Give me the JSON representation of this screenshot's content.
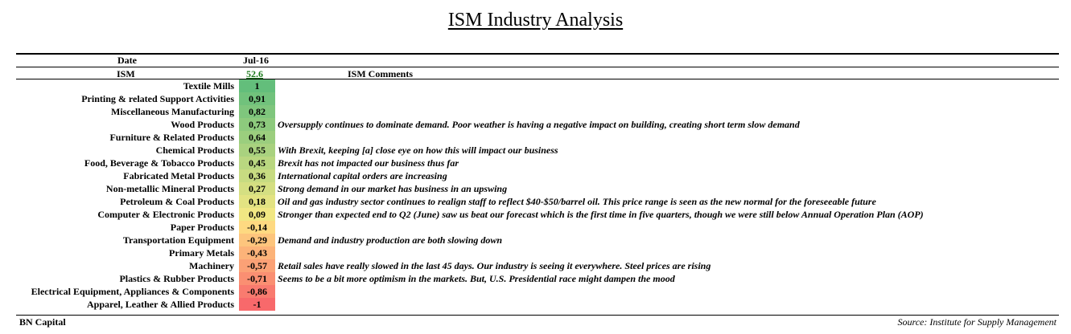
{
  "title": "ISM Industry Analysis",
  "header": {
    "date_label": "Date",
    "date_value": "Jul-16",
    "ism_label": "ISM",
    "ism_value": "52.6",
    "comments_label": "ISM Comments"
  },
  "footer": {
    "left": "BN Capital",
    "right": "Source: Institute for Supply Management"
  },
  "colors": {
    "high": "#63be7b",
    "mid": "#ffeb84",
    "low": "#f8696b",
    "ism_value_text": "#1a7a1a"
  },
  "chart_data": {
    "type": "table",
    "title": "ISM Industry Analysis",
    "columns": [
      "",
      "Jul-16",
      "ISM Comments"
    ],
    "rows": [
      {
        "industry": "Textile Mills",
        "value": 1,
        "display": "1",
        "comment": ""
      },
      {
        "industry": "Printing & related Support Activities",
        "value": 0.91,
        "display": "0,91",
        "comment": ""
      },
      {
        "industry": "Miscellaneous Manufacturing",
        "value": 0.82,
        "display": "0,82",
        "comment": ""
      },
      {
        "industry": "Wood Products",
        "value": 0.73,
        "display": "0,73",
        "comment": "Oversupply continues to dominate demand. Poor weather is having a negative impact on building, creating short term slow demand"
      },
      {
        "industry": "Furniture & Related Products",
        "value": 0.64,
        "display": "0,64",
        "comment": ""
      },
      {
        "industry": "Chemical Products",
        "value": 0.55,
        "display": "0,55",
        "comment": "With Brexit, keeping [a] close eye on how this will impact our business"
      },
      {
        "industry": "Food, Beverage & Tobacco Products",
        "value": 0.45,
        "display": "0,45",
        "comment": "Brexit has not impacted our business thus far"
      },
      {
        "industry": "Fabricated Metal Products",
        "value": 0.36,
        "display": "0,36",
        "comment": "International capital orders are increasing"
      },
      {
        "industry": "Non-metallic Mineral Products",
        "value": 0.27,
        "display": "0,27",
        "comment": "Strong demand in our market has business in an upswing"
      },
      {
        "industry": "Petroleum & Coal Products",
        "value": 0.18,
        "display": "0,18",
        "comment": "Oil and gas industry sector continues to realign staff to reflect $40-$50/barrel oil. This price range is seen as the new normal for the foreseeable future"
      },
      {
        "industry": "Computer & Electronic Products",
        "value": 0.09,
        "display": "0,09",
        "comment": "Stronger than expected end to Q2 (June) saw us beat our forecast which is the first time in five quarters, though we were still below Annual Operation Plan (AOP)"
      },
      {
        "industry": "Paper Products",
        "value": -0.14,
        "display": "-0,14",
        "comment": ""
      },
      {
        "industry": "Transportation Equipment",
        "value": -0.29,
        "display": "-0,29",
        "comment": "Demand and industry production are both slowing down"
      },
      {
        "industry": "Primary Metals",
        "value": -0.43,
        "display": "-0,43",
        "comment": ""
      },
      {
        "industry": "Machinery",
        "value": -0.57,
        "display": "-0,57",
        "comment": "Retail sales have really slowed in the last 45 days. Our industry is seeing it everywhere. Steel prices are rising"
      },
      {
        "industry": "Plastics & Rubber Products",
        "value": -0.71,
        "display": "-0,71",
        "comment": "Seems to be a bit more optimism in the markets. But, U.S. Presidential race might dampen the mood"
      },
      {
        "industry": "Electrical Equipment, Appliances & Components",
        "value": -0.86,
        "display": "-0,86",
        "comment": ""
      },
      {
        "industry": "Apparel, Leather & Allied Products",
        "value": -1,
        "display": "-1",
        "comment": ""
      }
    ]
  }
}
